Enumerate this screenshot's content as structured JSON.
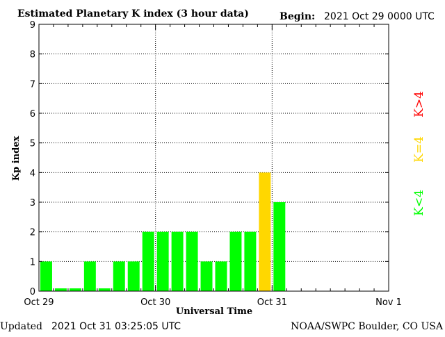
{
  "header": {
    "title": "Estimated Planetary K index (3 hour data)",
    "begin_label": "Begin:",
    "begin_value": "2021 Oct 29 0000 UTC"
  },
  "footer": {
    "updated_label": "Updated",
    "updated_value": "2021 Oct 31 03:25:05 UTC",
    "source": "NOAA/SWPC Boulder, CO USA"
  },
  "legend": {
    "high": "K>4",
    "equal": "K=4",
    "low": "K<4"
  },
  "colors": {
    "low": "#00ff00",
    "equal": "#ffd700",
    "high": "#ff0000",
    "axis": "#000000",
    "grid": "#000000"
  },
  "chart_data": {
    "type": "bar",
    "title": "Estimated Planetary K index (3 hour data)",
    "xlabel": "Universal Time",
    "ylabel": "Kp index",
    "ylim": [
      0,
      9
    ],
    "yticks": [
      "0",
      "1",
      "2",
      "3",
      "4",
      "5",
      "6",
      "7",
      "8",
      "9"
    ],
    "x_tick_labels": [
      "Oct 29",
      "Oct 30",
      "Oct 31",
      "Nov 1"
    ],
    "bars_per_day": 8,
    "days": 3,
    "values": [
      1,
      0,
      0,
      1,
      0,
      1,
      1,
      2,
      2,
      2,
      2,
      1,
      1,
      2,
      2,
      4,
      3
    ],
    "grid": "dotted, both axes",
    "legend_position": "right"
  }
}
